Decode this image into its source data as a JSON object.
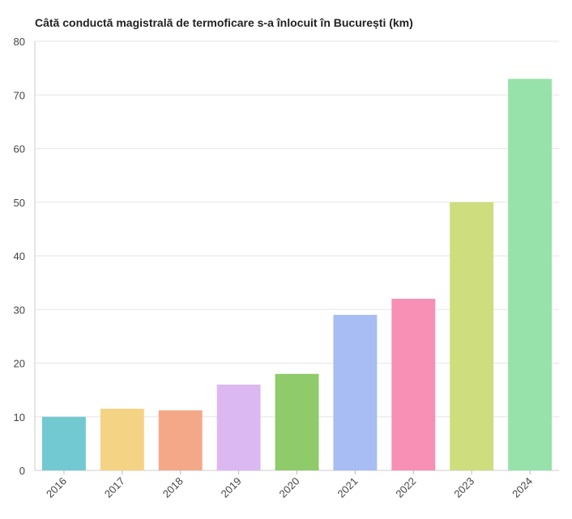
{
  "chart_data": {
    "type": "bar",
    "title": "Câtă conductă magistrală de termoficare s-a înlocuit în București (km)",
    "xlabel": "",
    "ylabel": "",
    "categories": [
      "2016",
      "2017",
      "2018",
      "2019",
      "2020",
      "2021",
      "2022",
      "2023",
      "2024"
    ],
    "values": [
      10,
      11.5,
      11.2,
      16,
      18,
      29,
      32,
      50,
      73
    ],
    "colors": [
      "#73c9d2",
      "#f5d384",
      "#f5a887",
      "#dcb8f3",
      "#8fca6b",
      "#a7bdf3",
      "#f890b5",
      "#cedd7e",
      "#97e2aa"
    ],
    "ylim": [
      0,
      80
    ],
    "yticks": [
      0,
      10,
      20,
      30,
      40,
      50,
      60,
      70,
      80
    ],
    "grid": true,
    "legend": "none"
  }
}
